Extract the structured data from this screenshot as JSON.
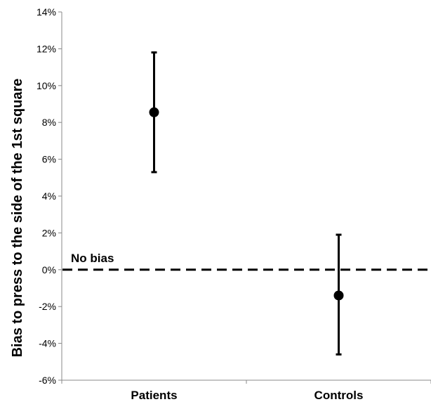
{
  "chart_data": {
    "type": "scatter",
    "title": "",
    "xlabel": "",
    "ylabel": "Bias to press to the side of the 1st square",
    "categories": [
      "Patients",
      "Controls"
    ],
    "series": [
      {
        "values": [
          8.55,
          -1.4
        ],
        "error_low": [
          5.3,
          -4.6
        ],
        "error_high": [
          11.8,
          1.9
        ]
      }
    ],
    "ylim": [
      -6,
      14
    ],
    "yticks": [
      -6,
      -4,
      -2,
      0,
      2,
      4,
      6,
      8,
      10,
      12,
      14
    ],
    "ytick_format": "percent",
    "reference_line": {
      "value": 0,
      "label": "No bias",
      "style": "dashed"
    },
    "grid": false,
    "legend": "none",
    "colors": {
      "marker": "#000000",
      "axis": "#888888",
      "reference_line": "#000000"
    }
  }
}
